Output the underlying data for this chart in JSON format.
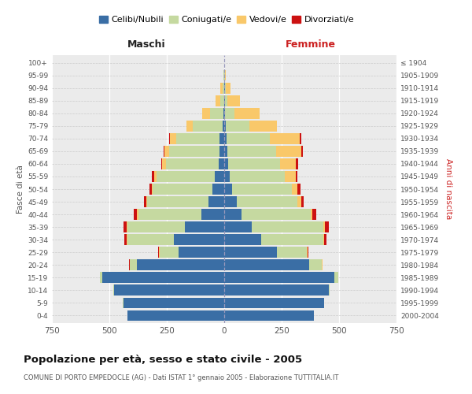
{
  "age_groups": [
    "0-4",
    "5-9",
    "10-14",
    "15-19",
    "20-24",
    "25-29",
    "30-34",
    "35-39",
    "40-44",
    "45-49",
    "50-54",
    "55-59",
    "60-64",
    "65-69",
    "70-74",
    "75-79",
    "80-84",
    "85-89",
    "90-94",
    "95-99",
    "100+"
  ],
  "birth_years": [
    "2000-2004",
    "1995-1999",
    "1990-1994",
    "1985-1989",
    "1980-1984",
    "1975-1979",
    "1970-1974",
    "1965-1969",
    "1960-1964",
    "1955-1959",
    "1950-1954",
    "1945-1949",
    "1940-1944",
    "1935-1939",
    "1930-1934",
    "1925-1929",
    "1920-1924",
    "1915-1919",
    "1910-1914",
    "1905-1909",
    "≤ 1904"
  ],
  "males": {
    "celibi": [
      420,
      440,
      480,
      530,
      380,
      200,
      220,
      170,
      100,
      70,
      50,
      40,
      25,
      20,
      20,
      8,
      5,
      0,
      0,
      0,
      0
    ],
    "coniugati": [
      0,
      1,
      2,
      10,
      30,
      80,
      200,
      250,
      275,
      265,
      260,
      255,
      230,
      220,
      190,
      130,
      55,
      18,
      8,
      3,
      0
    ],
    "vedovi": [
      0,
      0,
      0,
      0,
      2,
      3,
      5,
      5,
      5,
      5,
      5,
      10,
      15,
      20,
      25,
      25,
      35,
      18,
      8,
      2,
      0
    ],
    "divorziati": [
      0,
      0,
      0,
      0,
      3,
      5,
      10,
      15,
      15,
      10,
      10,
      10,
      5,
      5,
      5,
      2,
      0,
      0,
      0,
      0,
      0
    ]
  },
  "females": {
    "nubili": [
      390,
      435,
      455,
      480,
      370,
      230,
      160,
      120,
      75,
      55,
      35,
      25,
      18,
      15,
      10,
      8,
      5,
      3,
      2,
      0,
      0
    ],
    "coniugate": [
      0,
      1,
      3,
      15,
      55,
      130,
      270,
      310,
      300,
      265,
      260,
      240,
      225,
      210,
      190,
      100,
      40,
      12,
      5,
      2,
      0
    ],
    "vedove": [
      0,
      0,
      0,
      0,
      2,
      3,
      5,
      10,
      10,
      15,
      25,
      45,
      70,
      110,
      130,
      120,
      110,
      55,
      20,
      5,
      0
    ],
    "divorziate": [
      0,
      0,
      0,
      0,
      2,
      5,
      10,
      15,
      15,
      10,
      12,
      10,
      8,
      8,
      5,
      3,
      0,
      0,
      0,
      0,
      0
    ]
  },
  "colors": {
    "celibi_nubili": "#3a6ea5",
    "coniugati": "#c5d9a0",
    "vedovi": "#f9c86a",
    "divorziati": "#cc1111"
  },
  "title": "Popolazione per età, sesso e stato civile - 2005",
  "subtitle": "COMUNE DI PORTO EMPEDOCLE (AG) - Dati ISTAT 1° gennaio 2005 - Elaborazione TUTTITALIA.IT",
  "xlabel_left": "Maschi",
  "xlabel_right": "Femmine",
  "ylabel_left": "Fasce di età",
  "ylabel_right": "Anni di nascita",
  "xlim": 750,
  "bg_color": "#ffffff",
  "plot_bg_color": "#ebebeb",
  "legend_labels": [
    "Celibi/Nubili",
    "Coniugati/e",
    "Vedovi/e",
    "Divorziati/e"
  ]
}
